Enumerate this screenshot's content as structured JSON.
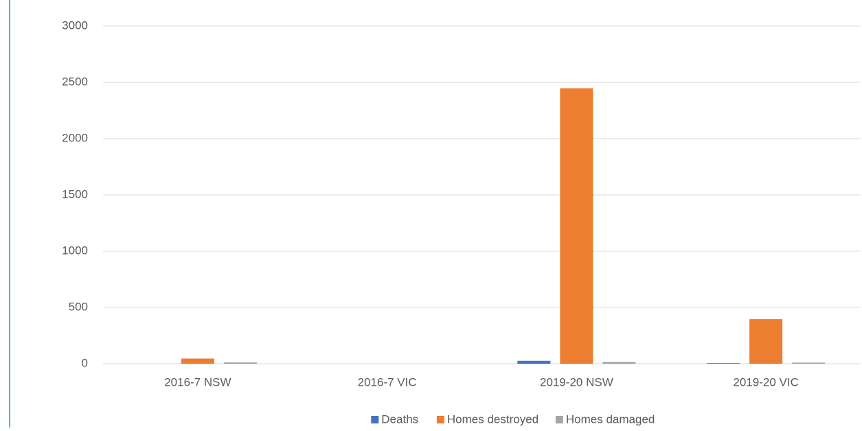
{
  "chart_data": {
    "type": "bar",
    "categories": [
      "2016-7 NSW",
      "2016-7 VIC",
      "2019-20 NSW",
      "2019-20 VIC"
    ],
    "series": [
      {
        "name": "Deaths",
        "color": "#4472c4",
        "values": [
          0,
          0,
          26,
          5
        ]
      },
      {
        "name": "Homes destroyed",
        "color": "#ed7d31",
        "values": [
          46,
          0,
          2448,
          396
        ]
      },
      {
        "name": "Homes damaged",
        "color": "#a5a5a5",
        "values": [
          12,
          0,
          16,
          10
        ]
      }
    ],
    "ylim": [
      0,
      3000
    ],
    "yticks": [
      0,
      500,
      1000,
      1500,
      2000,
      2500,
      3000
    ],
    "grid": true,
    "legend": "bottom"
  }
}
